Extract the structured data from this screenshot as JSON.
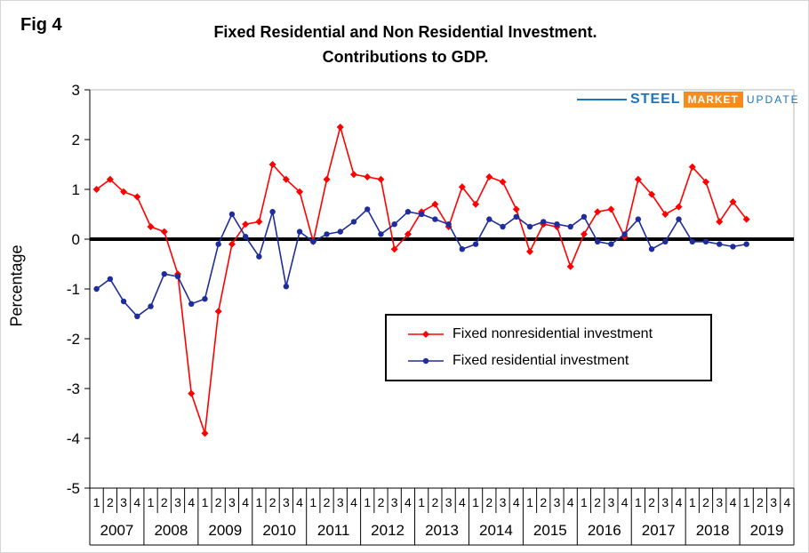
{
  "fig_label": "Fig 4",
  "title_line1": "Fixed Residential and Non Residential Investment.",
  "title_line2": "Contributions to GDP.",
  "logo": {
    "steel": "STEEL",
    "market": "MARKET",
    "update": "UPDATE",
    "blue": "#1b75bc",
    "orange": "#f68b1f"
  },
  "chart_data": {
    "type": "line",
    "title": "Fixed Residential and Non Residential Investment.",
    "subtitle": "Contributions to GDP.",
    "ylabel": "Percentage",
    "ylim": [
      -5,
      3
    ],
    "y_ticks": [
      3,
      2,
      1,
      0,
      -1,
      -2,
      -3,
      -4,
      -5
    ],
    "zero_line": true,
    "legend_position": "center-right-box",
    "x_years": [
      "2007",
      "2008",
      "2009",
      "2010",
      "2011",
      "2012",
      "2013",
      "2014",
      "2015",
      "2016",
      "2017",
      "2018",
      "2019"
    ],
    "quarter_labels": [
      "1",
      "2",
      "3",
      "4"
    ],
    "series": [
      {
        "name": "Fixed nonresidential investment",
        "color": "#ff0000",
        "marker": "diamond",
        "values": [
          1.0,
          1.2,
          0.95,
          0.85,
          0.25,
          0.15,
          -0.7,
          -3.1,
          -3.9,
          -1.45,
          -0.1,
          0.3,
          0.35,
          1.5,
          1.2,
          0.95,
          -0.05,
          1.2,
          2.25,
          1.3,
          1.25,
          1.2,
          -0.2,
          0.1,
          0.55,
          0.7,
          0.25,
          1.05,
          0.7,
          1.25,
          1.15,
          0.6,
          -0.25,
          0.3,
          0.25,
          -0.55,
          0.1,
          0.55,
          0.6,
          0.05,
          1.2,
          0.9,
          0.5,
          0.65,
          1.45,
          1.15,
          0.35,
          0.75,
          0.4
        ]
      },
      {
        "name": "Fixed residential investment",
        "color": "#1f2d9c",
        "marker": "circle",
        "values": [
          -1.0,
          -0.8,
          -1.25,
          -1.55,
          -1.35,
          -0.7,
          -0.75,
          -1.3,
          -1.2,
          -0.1,
          0.5,
          0.05,
          -0.35,
          0.55,
          -0.95,
          0.15,
          -0.05,
          0.1,
          0.15,
          0.35,
          0.6,
          0.1,
          0.3,
          0.55,
          0.5,
          0.4,
          0.3,
          -0.2,
          -0.1,
          0.4,
          0.25,
          0.45,
          0.25,
          0.35,
          0.3,
          0.25,
          0.45,
          -0.05,
          -0.1,
          0.1,
          0.4,
          -0.2,
          -0.05,
          0.4,
          -0.05,
          -0.05,
          -0.1,
          -0.15,
          -0.1
        ]
      }
    ]
  }
}
